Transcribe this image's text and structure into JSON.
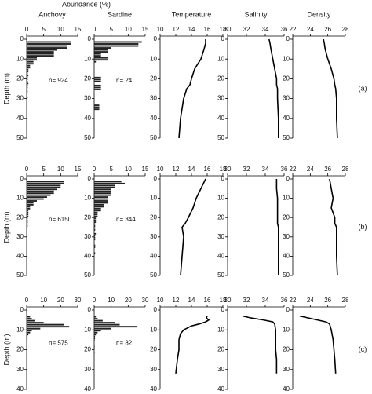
{
  "header": {
    "abundance_label": "Abundance (%)"
  },
  "chart_data": [
    {
      "type": "histogram",
      "title": "Anchovy",
      "ylabel": "Depth (m)",
      "annotation": "n= 924",
      "color": "#222",
      "bins": [
        0,
        1,
        2,
        3,
        4,
        5,
        6,
        7,
        8,
        9,
        10,
        11,
        12,
        13,
        14,
        15,
        16,
        17,
        18,
        19,
        20,
        21,
        22,
        23,
        24,
        25,
        26,
        27,
        28,
        29,
        30,
        31,
        32,
        33,
        34,
        35,
        36
      ],
      "values": [
        0,
        13,
        13,
        12,
        12,
        9,
        8,
        8,
        8,
        3,
        3,
        2,
        2,
        1,
        1,
        0.5,
        0.5,
        0.3,
        0.5,
        0.3,
        0.3,
        0.3,
        0.5,
        0.3,
        0.3,
        0.2,
        0.3,
        0.2,
        0.2,
        0.3,
        0.2,
        0.2,
        0,
        0.2,
        0.2,
        0.2
      ],
      "xlim": [
        0,
        15
      ],
      "xticks": [
        0,
        5,
        10,
        15
      ],
      "ylim": [
        0,
        50
      ],
      "yticks": [
        0,
        10,
        20,
        30,
        40,
        50
      ]
    },
    {
      "type": "histogram",
      "title": "Sardine",
      "annotation": "n= 24",
      "color": "#222",
      "bins": [
        0,
        1,
        2,
        3,
        4,
        5,
        6,
        7,
        8,
        9,
        10,
        11,
        12,
        13,
        14,
        15,
        16,
        17,
        18,
        19,
        20,
        21,
        22,
        23,
        24,
        25,
        26,
        27,
        28,
        29,
        30,
        31,
        32,
        33,
        34,
        35,
        36
      ],
      "values": [
        0,
        14,
        13,
        13,
        5,
        4,
        4,
        2,
        2,
        4,
        4,
        0.5,
        0,
        0,
        0,
        0,
        0,
        0,
        0,
        2,
        2,
        2,
        0,
        2,
        2,
        2,
        0,
        0,
        0,
        0,
        0,
        0,
        0,
        1.5,
        1.5,
        1.5
      ],
      "xlim": [
        0,
        15
      ],
      "xticks": [
        0,
        5,
        10,
        15
      ],
      "ylim": [
        0,
        50
      ],
      "yticks": [
        0,
        10,
        20,
        30,
        40,
        50
      ]
    },
    {
      "type": "line",
      "title": "Temperature",
      "color": "#000",
      "y": [
        0,
        2,
        5,
        10,
        15,
        20,
        23,
        25,
        30,
        40,
        50
      ],
      "values": [
        15.8,
        15.8,
        15.6,
        15.2,
        14.4,
        14,
        13.8,
        13.4,
        13,
        12.6,
        12.4
      ],
      "xlim": [
        10,
        18
      ],
      "xticks": [
        10,
        12,
        14,
        16,
        18
      ],
      "ylim": [
        0,
        50
      ],
      "yticks": [
        0,
        10,
        20,
        30,
        40,
        50
      ]
    },
    {
      "type": "line",
      "title": "Salinity",
      "color": "#000",
      "y": [
        0,
        2,
        5,
        10,
        15,
        20,
        23,
        25,
        30,
        40,
        50
      ],
      "values": [
        34.4,
        34.5,
        34.6,
        34.8,
        35,
        35.2,
        35.2,
        35.3,
        35.3,
        35.4,
        35.4
      ],
      "xlim": [
        30,
        36
      ],
      "xticks": [
        30,
        32,
        34,
        36
      ],
      "ylim": [
        0,
        50
      ],
      "yticks": [
        0,
        10,
        20,
        30,
        40,
        50
      ]
    },
    {
      "type": "line",
      "title": "Density",
      "panel_label": "(a)",
      "color": "#000",
      "y": [
        0,
        2,
        5,
        10,
        15,
        20,
        23,
        25,
        30,
        40,
        50
      ],
      "values": [
        25.5,
        25.6,
        25.7,
        26,
        26.4,
        26.7,
        26.8,
        26.9,
        27,
        27,
        27.1
      ],
      "xlim": [
        22,
        28
      ],
      "xticks": [
        22,
        24,
        26,
        28
      ],
      "ylim": [
        0,
        50
      ],
      "yticks": [
        0,
        10,
        20,
        30,
        40,
        50
      ]
    },
    {
      "type": "histogram",
      "ylabel": "Depth (m)",
      "annotation": "n= 6150",
      "color": "#222",
      "bins": [
        0,
        1,
        2,
        3,
        4,
        5,
        6,
        7,
        8,
        9,
        10,
        11,
        12,
        13,
        14,
        15,
        16,
        17,
        18,
        19,
        20,
        21,
        22,
        23,
        24,
        25,
        26,
        27,
        28,
        29,
        30,
        31,
        32,
        33,
        34,
        35,
        36,
        37,
        38,
        39,
        40
      ],
      "values": [
        0,
        11,
        11,
        10,
        10,
        9,
        8,
        8,
        7,
        6,
        5,
        3,
        2,
        2,
        1,
        1,
        0.5,
        0.5,
        0.5,
        0.5,
        0.3,
        0.3,
        0.3,
        0.3,
        0.3,
        0.2,
        0.2,
        0.2,
        0.2,
        0.2,
        0.2,
        0.2,
        0.2,
        0.2,
        0.2,
        0.2,
        0.2,
        0.2,
        0.2,
        0.2
      ],
      "xlim": [
        0,
        15
      ],
      "xticks": [
        0,
        5,
        10,
        15
      ],
      "ylim": [
        0,
        50
      ],
      "yticks": [
        0,
        10,
        20,
        30,
        40,
        50
      ]
    },
    {
      "type": "histogram",
      "annotation": "n= 344",
      "color": "#222",
      "bins": [
        0,
        1,
        2,
        3,
        4,
        5,
        6,
        7,
        8,
        9,
        10,
        11,
        12,
        13,
        14,
        15,
        16,
        17,
        18,
        19,
        20,
        21,
        22,
        23,
        24,
        25,
        26,
        27,
        28,
        29,
        30,
        31,
        32,
        33,
        34,
        35,
        36,
        37,
        38,
        39,
        40
      ],
      "values": [
        0,
        8,
        9,
        6,
        6,
        5,
        5,
        5,
        5,
        4,
        4,
        4,
        4,
        3,
        3,
        2,
        2,
        1,
        1,
        1,
        0.5,
        0.5,
        0.5,
        0.3,
        0.3,
        0.3,
        0.3,
        0,
        0.5,
        0.3,
        0.3,
        0.3,
        0,
        0,
        0.3,
        0.3,
        0,
        0,
        0.3,
        0
      ],
      "xlim": [
        0,
        15
      ],
      "xticks": [
        0,
        5,
        10,
        15
      ],
      "ylim": [
        0,
        50
      ],
      "yticks": [
        0,
        10,
        20,
        30,
        40,
        50
      ]
    },
    {
      "type": "line",
      "color": "#000",
      "y": [
        0,
        5,
        10,
        15,
        20,
        23,
        25,
        30,
        40,
        50
      ],
      "values": [
        15.8,
        15.2,
        14.6,
        14.2,
        13.6,
        13.2,
        12.8,
        13,
        12.8,
        12.6
      ],
      "xlim": [
        10,
        18
      ],
      "xticks": [
        10,
        12,
        14,
        16,
        18
      ],
      "ylim": [
        0,
        50
      ],
      "yticks": [
        0,
        10,
        20,
        30,
        40,
        50
      ]
    },
    {
      "type": "line",
      "color": "#000",
      "y": [
        0,
        5,
        10,
        15,
        20,
        23,
        25,
        30,
        40,
        50
      ],
      "values": [
        35.2,
        35.2,
        35.3,
        35.3,
        35.3,
        35.3,
        35.4,
        35.4,
        35.4,
        35.4
      ],
      "xlim": [
        30,
        36
      ],
      "xticks": [
        30,
        32,
        34,
        36
      ],
      "ylim": [
        0,
        50
      ],
      "yticks": [
        0,
        10,
        20,
        30,
        40,
        50
      ]
    },
    {
      "type": "line",
      "panel_label": "(b)",
      "color": "#000",
      "y": [
        0,
        5,
        10,
        15,
        20,
        23,
        25,
        30,
        40,
        50
      ],
      "values": [
        26.2,
        26.4,
        26.6,
        26.4,
        26.8,
        26.8,
        27,
        27,
        27,
        27.1
      ],
      "xlim": [
        22,
        28
      ],
      "xticks": [
        22,
        24,
        26,
        28
      ],
      "ylim": [
        0,
        50
      ],
      "yticks": [
        0,
        10,
        20,
        30,
        40,
        50
      ]
    },
    {
      "type": "histogram",
      "ylabel": "Depth (m)",
      "annotation": "n= 575",
      "color": "#222",
      "bins": [
        0,
        1,
        2,
        3,
        4,
        5,
        6,
        7,
        8,
        9,
        10,
        11,
        12,
        13,
        14,
        15,
        16,
        17,
        18,
        19,
        20,
        21,
        22
      ],
      "values": [
        0,
        0,
        0,
        2,
        3,
        5,
        10,
        22,
        25,
        8,
        3,
        2,
        1,
        0.5,
        0.5,
        0.3,
        0.3,
        0,
        0.3,
        0.3,
        0,
        0.3
      ],
      "xlim": [
        0,
        30
      ],
      "xticks": [
        0,
        10,
        20,
        30
      ],
      "ylim": [
        0,
        40
      ],
      "yticks": [
        0,
        10,
        20,
        30,
        40
      ]
    },
    {
      "type": "histogram",
      "annotation": "n= 82",
      "color": "#222",
      "bins": [
        0,
        1,
        2,
        3,
        4,
        5,
        6,
        7,
        8,
        9,
        10,
        11,
        12,
        13,
        14,
        15,
        16,
        17,
        18,
        19,
        20,
        21,
        22
      ],
      "values": [
        0,
        0,
        0,
        1,
        2,
        5,
        12,
        15,
        25,
        10,
        4,
        2,
        1,
        0.5,
        0.5,
        0.3,
        0,
        0,
        0.3,
        0.3,
        0,
        0.3
      ],
      "xlim": [
        0,
        30
      ],
      "xticks": [
        0,
        10,
        20,
        30
      ],
      "ylim": [
        0,
        40
      ],
      "yticks": [
        0,
        10,
        20,
        30,
        40
      ]
    },
    {
      "type": "line",
      "color": "#000",
      "y": [
        3,
        4,
        5,
        6,
        7,
        8,
        10,
        12,
        15,
        20,
        25,
        32
      ],
      "values": [
        16,
        15.9,
        16.2,
        15.8,
        15,
        14,
        13,
        12.6,
        12.4,
        12.4,
        12.2,
        12
      ],
      "xlim": [
        10,
        18
      ],
      "xticks": [
        10,
        12,
        14,
        16,
        18
      ],
      "ylim": [
        0,
        40
      ],
      "yticks": [
        0,
        10,
        20,
        30,
        40
      ]
    },
    {
      "type": "line",
      "color": "#000",
      "y": [
        3,
        4,
        5,
        6,
        7,
        10,
        15,
        20,
        25,
        32
      ],
      "values": [
        31.6,
        32.5,
        33.8,
        34.8,
        35,
        35.1,
        35.1,
        35.1,
        35.2,
        35.2
      ],
      "xlim": [
        30,
        36
      ],
      "xticks": [
        30,
        32,
        34,
        36
      ],
      "ylim": [
        0,
        40
      ],
      "yticks": [
        0,
        10,
        20,
        30,
        40
      ]
    },
    {
      "type": "line",
      "panel_label": "(c)",
      "color": "#000",
      "y": [
        3,
        4,
        5,
        6,
        7,
        10,
        15,
        20,
        25,
        32
      ],
      "values": [
        22.8,
        23.8,
        24.8,
        25.8,
        26.2,
        26.4,
        26.6,
        26.7,
        26.8,
        26.9
      ],
      "xlim": [
        22,
        28
      ],
      "xticks": [
        22,
        24,
        26,
        28
      ],
      "ylim": [
        0,
        40
      ],
      "yticks": [
        0,
        10,
        20,
        30,
        40
      ]
    }
  ]
}
